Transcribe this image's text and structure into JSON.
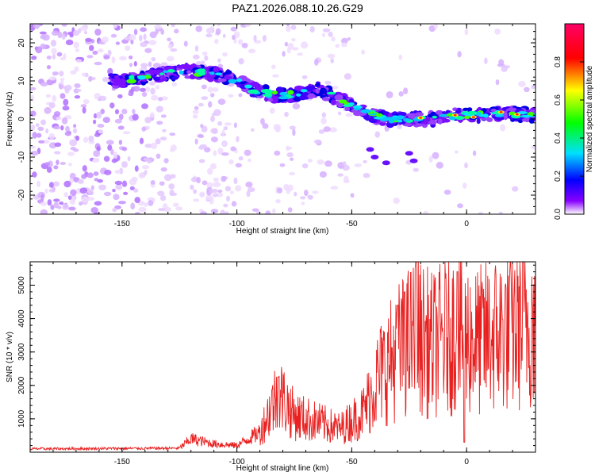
{
  "title": "PAZ1.2026.088.10.26.G29",
  "chart_data": [
    {
      "type": "heatmap",
      "name": "spectrogram",
      "xlabel": "Height of straight line (km)",
      "ylabel": "Frequency (Hz)",
      "xlim": [
        -190,
        30
      ],
      "ylim": [
        -25,
        25
      ],
      "xticks": [
        -150,
        -100,
        -50,
        0
      ],
      "yticks": [
        -20,
        -10,
        0,
        10,
        20
      ],
      "colorbar": {
        "label": "Normalized spectral amplitude",
        "range": [
          0,
          1
        ],
        "ticks": [
          0.0,
          0.2,
          0.4,
          0.6,
          0.8
        ],
        "tick_labels": [
          "0.0",
          "0.2",
          "0.4",
          "0.6",
          "0.8"
        ],
        "colors": [
          "#ffffff",
          "#8800ff",
          "#0000ff",
          "#00e0ff",
          "#00ff00",
          "#ffff00",
          "#ff0000",
          "#ff0066"
        ]
      },
      "ridge": [
        {
          "x": -150,
          "y": 10
        },
        {
          "x": -140,
          "y": 11
        },
        {
          "x": -130,
          "y": 12
        },
        {
          "x": -120,
          "y": 12.5
        },
        {
          "x": -110,
          "y": 12
        },
        {
          "x": -100,
          "y": 10
        },
        {
          "x": -90,
          "y": 7
        },
        {
          "x": -80,
          "y": 6
        },
        {
          "x": -70,
          "y": 7
        },
        {
          "x": -65,
          "y": 8
        },
        {
          "x": -55,
          "y": 5
        },
        {
          "x": -45,
          "y": 2
        },
        {
          "x": -35,
          "y": 0
        },
        {
          "x": -25,
          "y": 0
        },
        {
          "x": -15,
          "y": 0
        },
        {
          "x": -5,
          "y": 1
        },
        {
          "x": 5,
          "y": 1
        },
        {
          "x": 15,
          "y": 1.5
        },
        {
          "x": 30,
          "y": 1
        }
      ]
    },
    {
      "type": "line",
      "name": "snr",
      "xlabel": "Height of straight line (km)",
      "ylabel": "SNR (10 * v/v)",
      "xlim": [
        -190,
        30
      ],
      "ylim": [
        0,
        5700
      ],
      "xticks": [
        -150,
        -100,
        -50,
        0
      ],
      "yticks": [
        1000,
        2000,
        3000,
        4000,
        5000
      ],
      "color": "#e82020",
      "segments": [
        {
          "x": -190,
          "y": 100
        },
        {
          "x": -125,
          "y": 120
        },
        {
          "x": -120,
          "y": 400
        },
        {
          "x": -110,
          "y": 250
        },
        {
          "x": -100,
          "y": 200
        },
        {
          "x": -90,
          "y": 600
        },
        {
          "x": -82,
          "y": 1800
        },
        {
          "x": -75,
          "y": 1100
        },
        {
          "x": -65,
          "y": 900
        },
        {
          "x": -55,
          "y": 700
        },
        {
          "x": -45,
          "y": 1200
        },
        {
          "x": -38,
          "y": 2300
        },
        {
          "x": -30,
          "y": 3000
        },
        {
          "x": -22,
          "y": 3500
        },
        {
          "x": -15,
          "y": 3200
        },
        {
          "x": -5,
          "y": 3600
        },
        {
          "x": 5,
          "y": 3300
        },
        {
          "x": 15,
          "y": 3600
        },
        {
          "x": 25,
          "y": 3900
        },
        {
          "x": 30,
          "y": 4000
        }
      ],
      "spikes": [
        {
          "x": -22,
          "y": 5700
        },
        {
          "x": -27,
          "y": 4800
        },
        {
          "x": -4,
          "y": 5400
        },
        {
          "x": -1,
          "y": 300
        },
        {
          "x": -30,
          "y": 4400
        },
        {
          "x": -82,
          "y": 2250
        }
      ]
    }
  ]
}
